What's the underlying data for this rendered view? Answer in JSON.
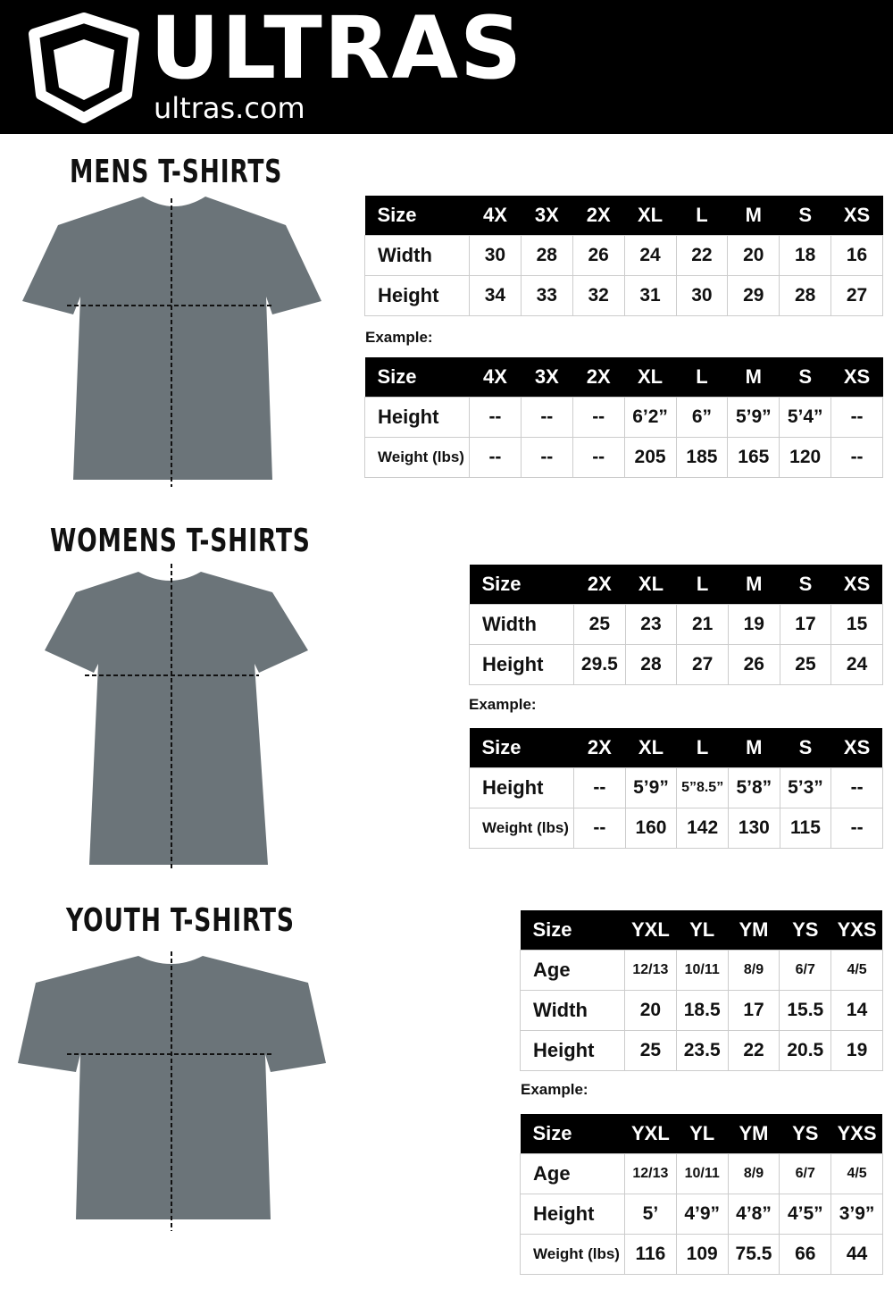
{
  "brand": {
    "name": "ULTRAS",
    "site": "ultras.com"
  },
  "sections": [
    {
      "title": "MENS T-SHIRTS",
      "example_label": "Example:",
      "measure": {
        "headers": [
          "Size",
          "4X",
          "3X",
          "2X",
          "XL",
          "L",
          "M",
          "S",
          "XS"
        ],
        "rows": [
          [
            "Width",
            "30",
            "28",
            "26",
            "24",
            "22",
            "20",
            "18",
            "16"
          ],
          [
            "Height",
            "34",
            "33",
            "32",
            "31",
            "30",
            "29",
            "28",
            "27"
          ]
        ]
      },
      "example": {
        "headers": [
          "Size",
          "4X",
          "3X",
          "2X",
          "XL",
          "L",
          "M",
          "S",
          "XS"
        ],
        "rows": [
          [
            "Height",
            "--",
            "--",
            "--",
            "6’2”",
            "6”",
            "5’9”",
            "5’4”",
            "--"
          ],
          [
            "Weight (lbs)",
            "--",
            "--",
            "--",
            "205",
            "185",
            "165",
            "120",
            "--"
          ]
        ]
      }
    },
    {
      "title": "WOMENS T-SHIRTS",
      "example_label": "Example:",
      "measure": {
        "headers": [
          "Size",
          "2X",
          "XL",
          "L",
          "M",
          "S",
          "XS"
        ],
        "rows": [
          [
            "Width",
            "25",
            "23",
            "21",
            "19",
            "17",
            "15"
          ],
          [
            "Height",
            "29.5",
            "28",
            "27",
            "26",
            "25",
            "24"
          ]
        ]
      },
      "example": {
        "headers": [
          "Size",
          "2X",
          "XL",
          "L",
          "M",
          "S",
          "XS"
        ],
        "rows": [
          [
            "Height",
            "--",
            "5’9”",
            "5”8.5”",
            "5’8”",
            "5’3”",
            "--"
          ],
          [
            "Weight (lbs)",
            "--",
            "160",
            "142",
            "130",
            "115",
            "--"
          ]
        ]
      }
    },
    {
      "title": "YOUTH T-SHIRTS",
      "example_label": "Example:",
      "measure": {
        "headers": [
          "Size",
          "YXL",
          "YL",
          "YM",
          "YS",
          "YXS"
        ],
        "rows": [
          [
            "Age",
            "12/13",
            "10/11",
            "8/9",
            "6/7",
            "4/5"
          ],
          [
            "Width",
            "20",
            "18.5",
            "17",
            "15.5",
            "14"
          ],
          [
            "Height",
            "25",
            "23.5",
            "22",
            "20.5",
            "19"
          ]
        ]
      },
      "example": {
        "headers": [
          "Size",
          "YXL",
          "YL",
          "YM",
          "YS",
          "YXS"
        ],
        "rows": [
          [
            "Age",
            "12/13",
            "10/11",
            "8/9",
            "6/7",
            "4/5"
          ],
          [
            "Height",
            "5’",
            "4’9”",
            "4’8”",
            "4’5”",
            "3’9”"
          ],
          [
            "Weight (lbs)",
            "116",
            "109",
            "75.5",
            "66",
            "44"
          ]
        ]
      }
    }
  ],
  "colors": {
    "shirt": "#6b7479",
    "header_bg": "#000000"
  }
}
